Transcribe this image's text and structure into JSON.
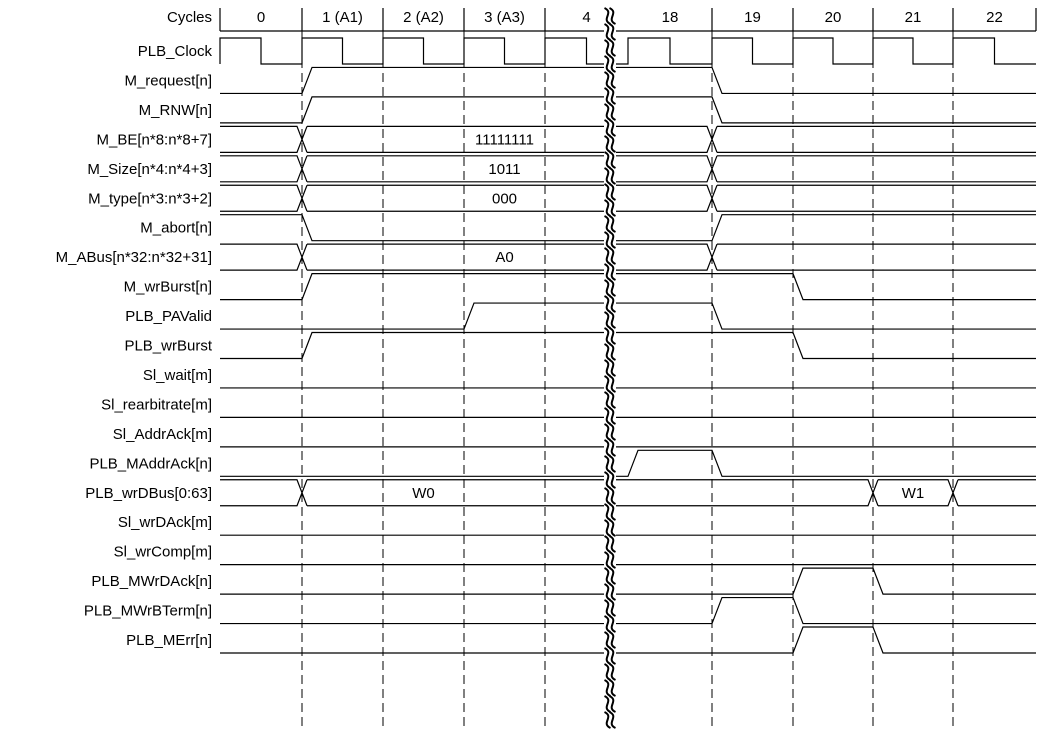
{
  "header": {
    "label": "Cycles",
    "cycles": [
      "0",
      "1 (A1)",
      "2 (A2)",
      "3 (A3)",
      "4",
      "18",
      "19",
      "20",
      "21",
      "22"
    ]
  },
  "signals": [
    {
      "name": "PLB_Clock",
      "type": "clock"
    },
    {
      "name": "M_request[n]",
      "type": "wave",
      "init": 0,
      "edges": [
        [
          1,
          1
        ],
        [
          6,
          0
        ]
      ]
    },
    {
      "name": "M_RNW[n]",
      "type": "wave",
      "init": 0,
      "edges": [
        [
          1,
          1
        ],
        [
          6,
          0
        ]
      ]
    },
    {
      "name": "M_BE[n*8:n*8+7]",
      "type": "bus",
      "edges": [
        1,
        6
      ],
      "labels": [
        {
          "text": "11111111",
          "cycle": 3
        }
      ]
    },
    {
      "name": "M_Size[n*4:n*4+3]",
      "type": "bus",
      "edges": [
        1,
        6
      ],
      "labels": [
        {
          "text": "1011",
          "cycle": 3
        }
      ]
    },
    {
      "name": "M_type[n*3:n*3+2]",
      "type": "bus",
      "edges": [
        1,
        6
      ],
      "labels": [
        {
          "text": "000",
          "cycle": 3
        }
      ]
    },
    {
      "name": "M_abort[n]",
      "type": "wave",
      "init": 1,
      "edges": [
        [
          1,
          0
        ],
        [
          6,
          1
        ]
      ]
    },
    {
      "name": "M_ABus[n*32:n*32+31]",
      "type": "bus",
      "edges": [
        1,
        6
      ],
      "labels": [
        {
          "text": "A0",
          "cycle": 3
        }
      ]
    },
    {
      "name": "M_wrBurst[n]",
      "type": "wave",
      "init": 0,
      "edges": [
        [
          1,
          1
        ],
        [
          7,
          0
        ]
      ]
    },
    {
      "name": "PLB_PAValid",
      "type": "wave",
      "init": 0,
      "edges": [
        [
          3,
          1
        ],
        [
          6,
          0
        ]
      ]
    },
    {
      "name": "PLB_wrBurst",
      "type": "wave",
      "init": 0,
      "edges": [
        [
          1,
          1
        ],
        [
          7,
          0
        ]
      ]
    },
    {
      "name": "Sl_wait[m]",
      "type": "wave",
      "init": 0,
      "edges": []
    },
    {
      "name": "Sl_rearbitrate[m]",
      "type": "wave",
      "init": 0,
      "edges": []
    },
    {
      "name": "Sl_AddrAck[m]",
      "type": "wave",
      "init": 0,
      "edges": []
    },
    {
      "name": "PLB_MAddrAck[n]",
      "type": "wave",
      "init": 0,
      "edges": [
        [
          5,
          1
        ],
        [
          6,
          0
        ]
      ]
    },
    {
      "name": "PLB_wrDBus[0:63]",
      "type": "bus",
      "edges": [
        1,
        8,
        9
      ],
      "labels": [
        {
          "text": "W0",
          "cycle": 2
        },
        {
          "text": "W1",
          "cycle": 8
        }
      ]
    },
    {
      "name": "Sl_wrDAck[m]",
      "type": "wave",
      "init": 0,
      "edges": []
    },
    {
      "name": "Sl_wrComp[m]",
      "type": "wave",
      "init": 0,
      "edges": []
    },
    {
      "name": "PLB_MWrDAck[n]",
      "type": "wave",
      "init": 0,
      "edges": [
        [
          7,
          1
        ],
        [
          8,
          0
        ]
      ]
    },
    {
      "name": "PLB_MWrBTerm[n]",
      "type": "wave",
      "init": 0,
      "edges": [
        [
          6,
          1
        ],
        [
          7,
          0
        ]
      ]
    },
    {
      "name": "PLB_MErr[n]",
      "type": "wave",
      "init": 0,
      "edges": [
        [
          7,
          1
        ],
        [
          8,
          0
        ]
      ]
    }
  ]
}
